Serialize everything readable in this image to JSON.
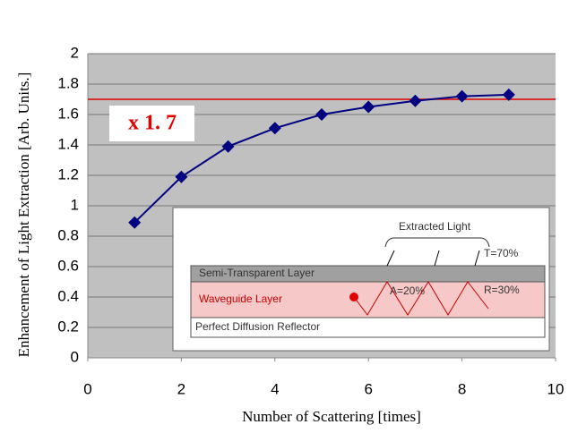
{
  "chart_data": {
    "type": "line",
    "xlabel": "Number of Scattering  [times]",
    "ylabel": "Enhancement of Light Extraction [Arb. Units.]",
    "x": [
      1,
      2,
      3,
      4,
      5,
      6,
      7,
      8,
      9
    ],
    "series": [
      {
        "color": "#000080",
        "values": [
          0.89,
          1.19,
          1.39,
          1.51,
          1.6,
          1.65,
          1.69,
          1.72,
          1.73
        ]
      }
    ],
    "xlim": [
      0,
      10
    ],
    "xticks": [
      0,
      2,
      4,
      6,
      8,
      10
    ],
    "ylim": [
      0,
      2
    ],
    "yticks": [
      0,
      0.2,
      0.4,
      0.6,
      0.8,
      1,
      1.2,
      1.4,
      1.6,
      1.8,
      2
    ],
    "grid": true,
    "reference_line": {
      "value": 1.7,
      "color": "#e00000"
    },
    "annotation": "x 1. 7",
    "inset": {
      "extracted": "Extracted Light",
      "transmit": "T=70%",
      "top_layer": "Semi-Transparent Layer",
      "middle_layer": "Waveguide Layer",
      "absorb": "A=20%",
      "reflect": "R=30%",
      "bottom_layer": "Perfect Diffusion Reflector"
    }
  }
}
